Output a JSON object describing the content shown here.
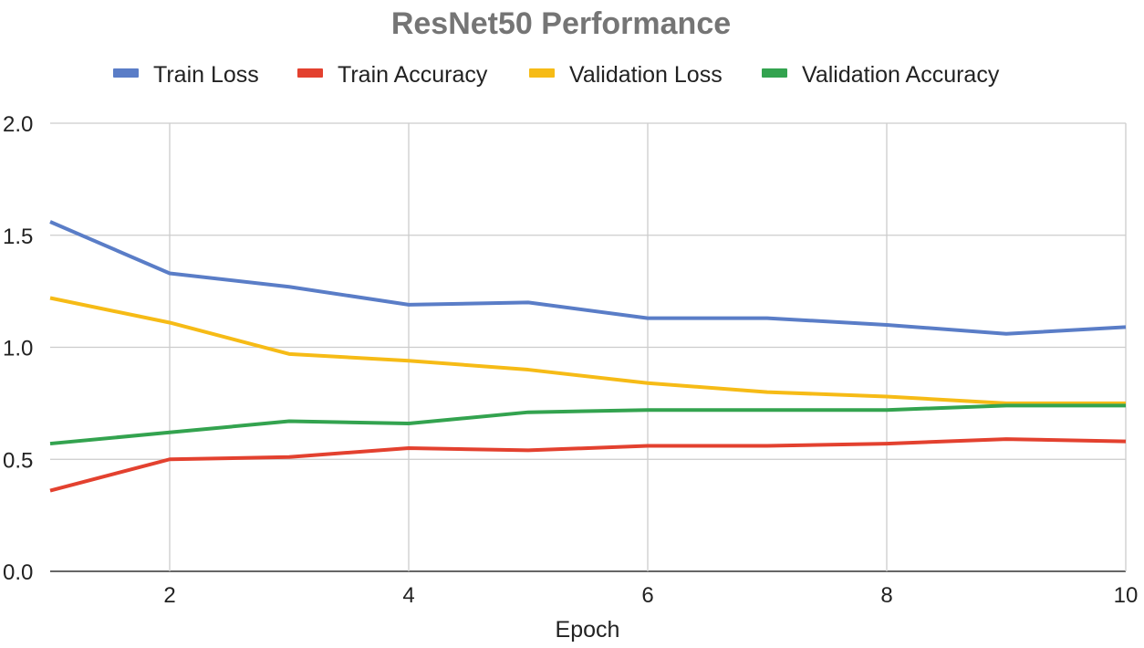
{
  "chart_data": {
    "type": "line",
    "title": "ResNet50 Performance",
    "xlabel": "Epoch",
    "ylabel": "",
    "x": [
      1,
      2,
      3,
      4,
      5,
      6,
      7,
      8,
      9,
      10
    ],
    "xlim": [
      1,
      10
    ],
    "ylim": [
      0,
      2
    ],
    "x_ticks": [
      2,
      4,
      6,
      8,
      10
    ],
    "x_tick_labels": [
      "2",
      "4",
      "6",
      "8",
      "10"
    ],
    "y_ticks": [
      0,
      0.5,
      1,
      1.5,
      2
    ],
    "y_tick_labels": [
      "0.0",
      "0.5",
      "1.0",
      "1.5",
      "2.0"
    ],
    "grid": true,
    "legend_position": "top",
    "series": [
      {
        "name": "Train Loss",
        "color": "#5a7dc7",
        "values": [
          1.56,
          1.33,
          1.27,
          1.19,
          1.2,
          1.13,
          1.13,
          1.1,
          1.06,
          1.09
        ]
      },
      {
        "name": "Train Accuracy",
        "color": "#e3412f",
        "values": [
          0.36,
          0.5,
          0.51,
          0.55,
          0.54,
          0.56,
          0.56,
          0.57,
          0.59,
          0.58
        ]
      },
      {
        "name": "Validation Loss",
        "color": "#f6bb16",
        "values": [
          1.22,
          1.11,
          0.97,
          0.94,
          0.9,
          0.84,
          0.8,
          0.78,
          0.75,
          0.75
        ]
      },
      {
        "name": "Validation Accuracy",
        "color": "#33a34f",
        "values": [
          0.57,
          0.62,
          0.67,
          0.66,
          0.71,
          0.72,
          0.72,
          0.72,
          0.74,
          0.74
        ]
      }
    ]
  }
}
